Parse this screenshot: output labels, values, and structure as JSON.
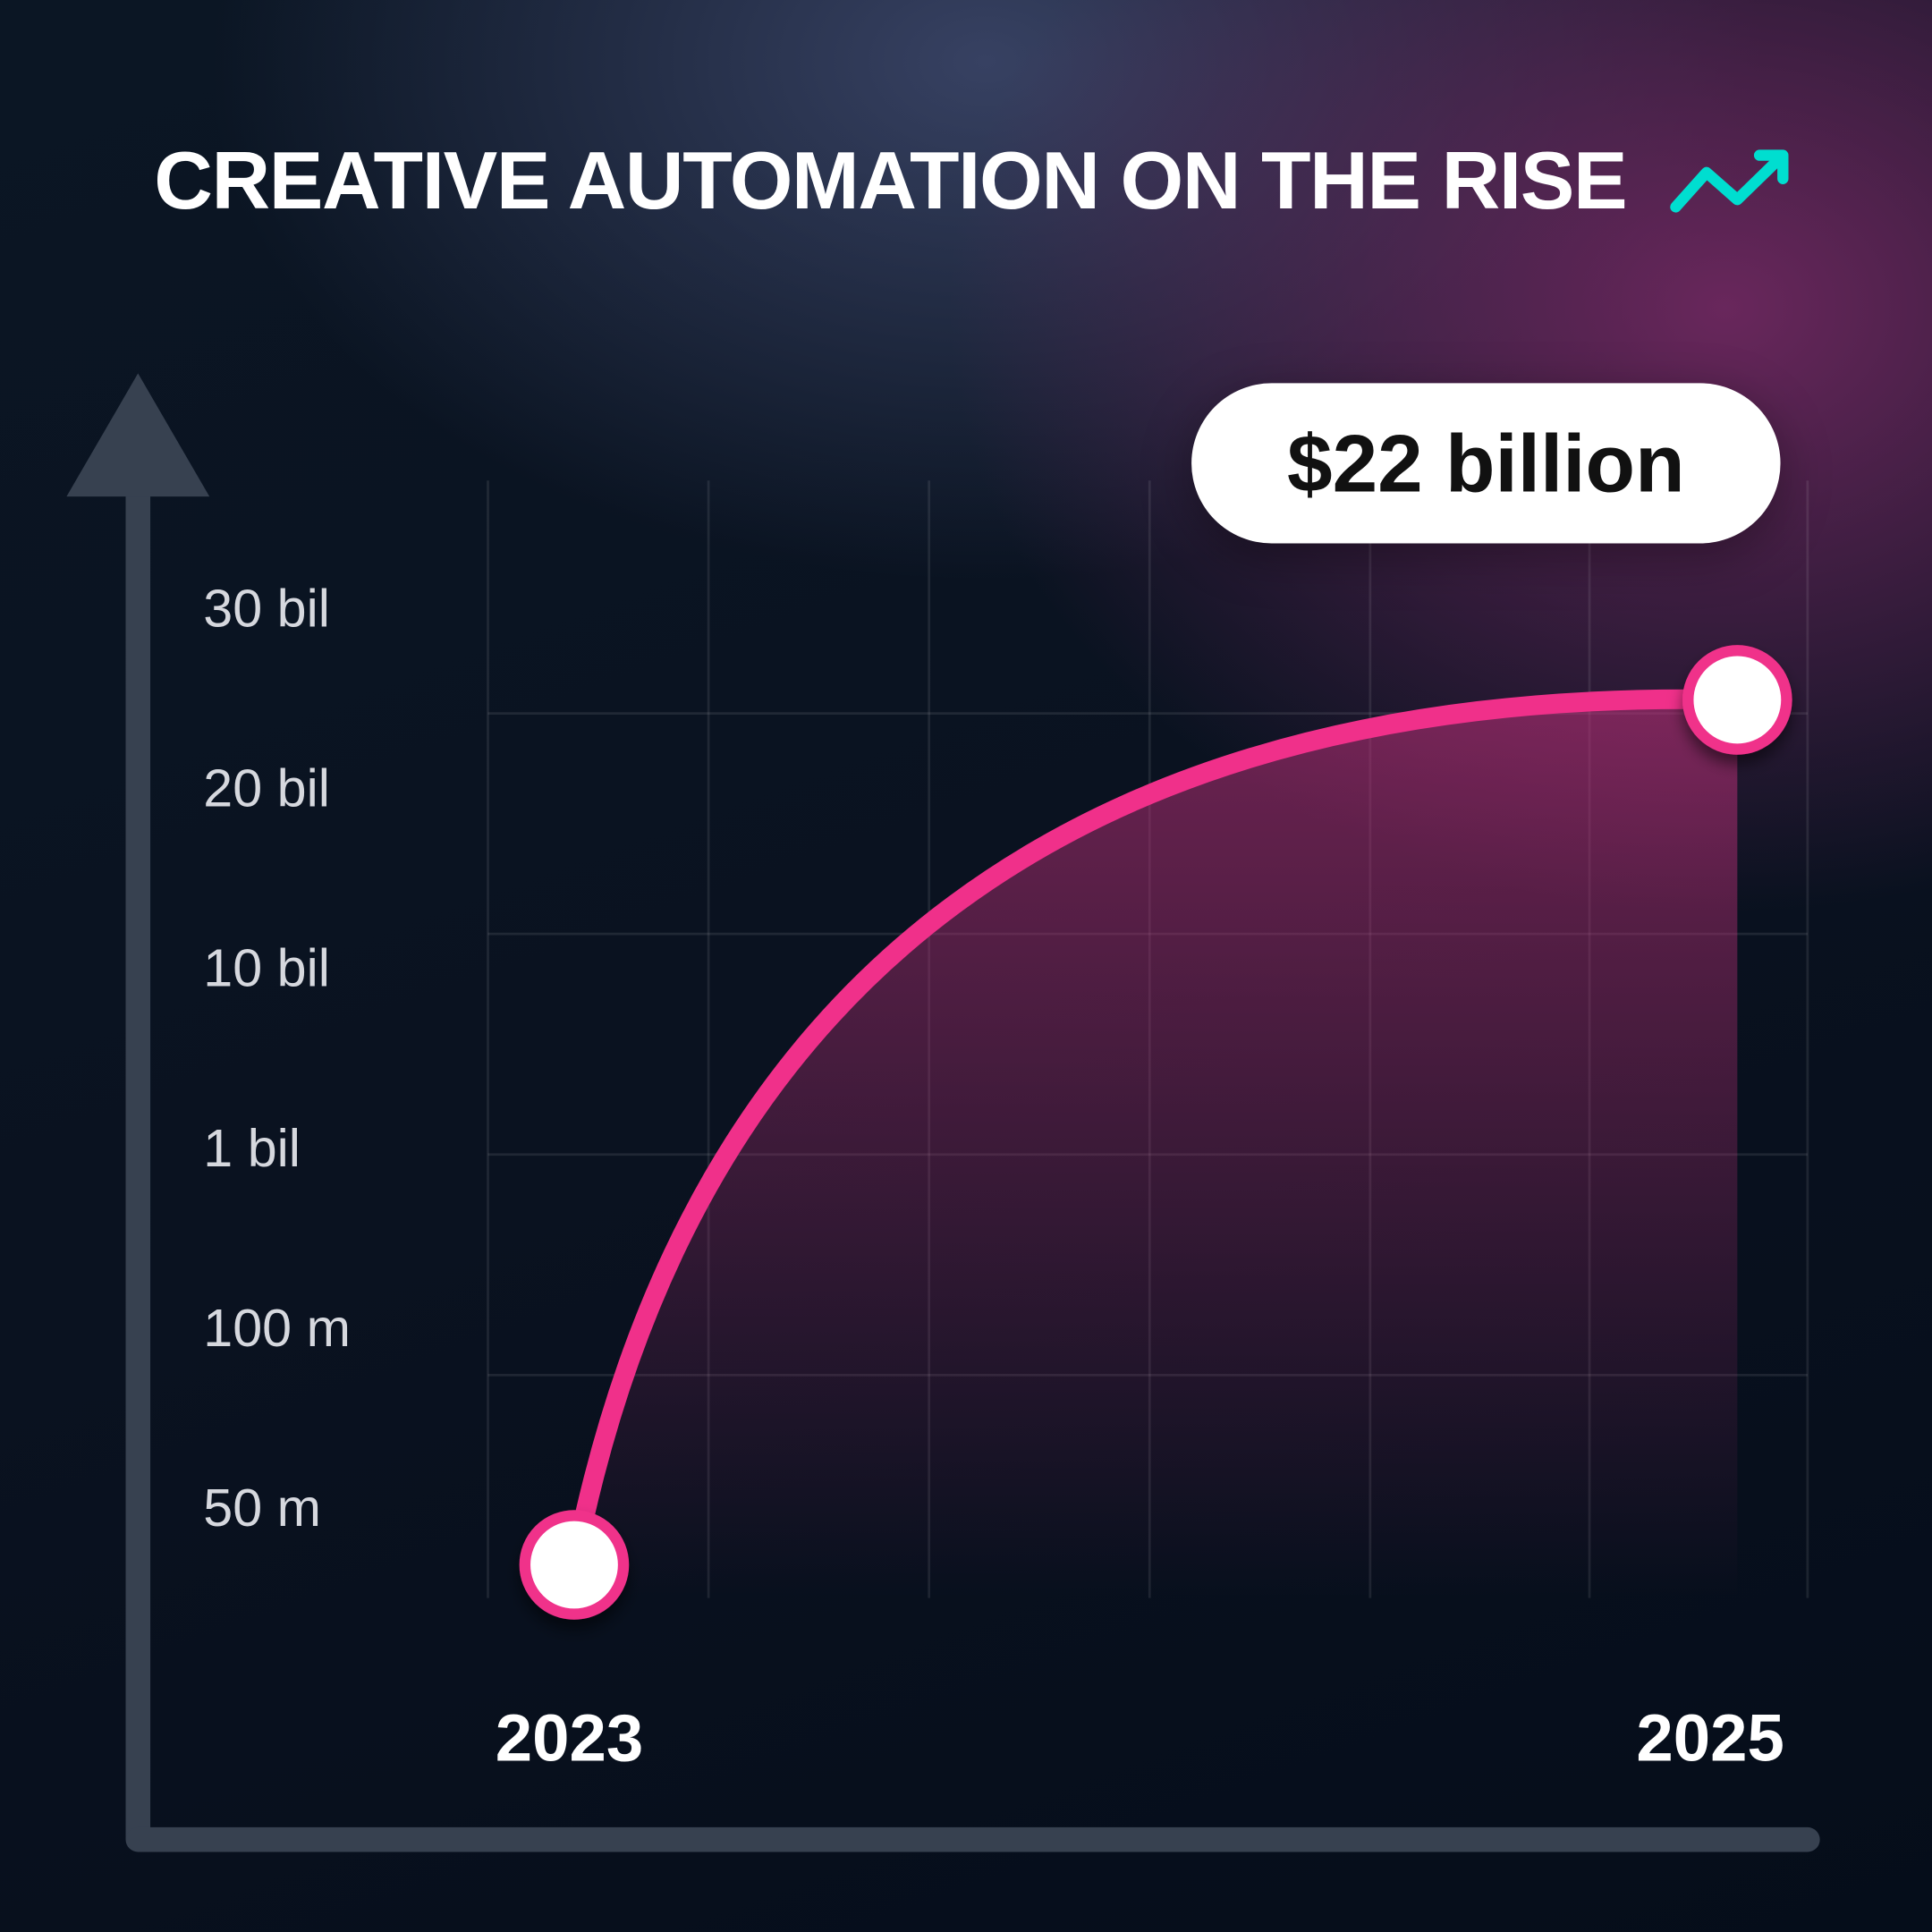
{
  "title": "CREATIVE AUTOMATION ON THE RISE",
  "title_icon": "trending-up-icon",
  "colors": {
    "accent_line": "#f0308a",
    "icon": "#00ded0",
    "axis": "#374150",
    "background": "#0a1220"
  },
  "chart_data": {
    "type": "line",
    "title": "CREATIVE AUTOMATION ON THE RISE",
    "x_ticks": [
      "2023",
      "2025"
    ],
    "y_ticks": [
      "30 bil",
      "20 bil",
      "10 bil",
      "1 bil",
      "100 m",
      "50 m"
    ],
    "series": [
      {
        "points": [
          {
            "x": "2023",
            "y": 50000000
          },
          {
            "x": "2025",
            "y": 22000000000
          }
        ]
      }
    ],
    "annotation": "$22 billion",
    "grid": true,
    "legend": "none"
  }
}
